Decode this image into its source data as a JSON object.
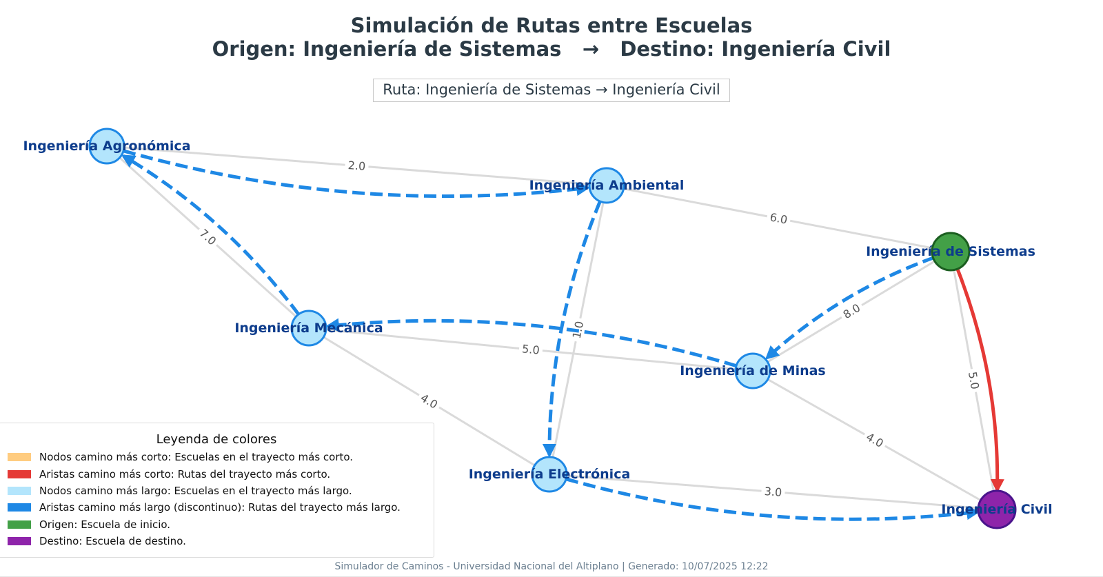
{
  "header": {
    "title_line1": "Simulación de Rutas entre Escuelas",
    "title_line2": "Origen: Ingeniería de Sistemas   →   Destino: Ingeniería Civil",
    "route_box": "Ruta: Ingeniería de Sistemas → Ingeniería Civil"
  },
  "colors": {
    "shortest_nodes": "#ffcc80",
    "shortest_edges": "#e53935",
    "longest_nodes": "#b3e5fc",
    "longest_edges": "#1e88e5",
    "origin": "#43a047",
    "destination": "#8e24aa",
    "base_edge": "#dadada",
    "node_label": "#0d3c8c"
  },
  "nodes": [
    {
      "id": "agronomica",
      "label": "Ingeniería Agronómica",
      "role": "longest"
    },
    {
      "id": "ambiental",
      "label": "Ingeniería Ambiental",
      "role": "longest"
    },
    {
      "id": "sistemas",
      "label": "Ingeniería de Sistemas",
      "role": "origin"
    },
    {
      "id": "mecanica",
      "label": "Ingeniería Mecánica",
      "role": "longest"
    },
    {
      "id": "minas",
      "label": "Ingeniería de Minas",
      "role": "longest"
    },
    {
      "id": "electronica",
      "label": "Ingeniería Electrónica",
      "role": "longest"
    },
    {
      "id": "civil",
      "label": "Ingeniería Civil",
      "role": "destination"
    }
  ],
  "edges": [
    {
      "from": "agronomica",
      "to": "ambiental",
      "weight": "2.0"
    },
    {
      "from": "agronomica",
      "to": "mecanica",
      "weight": "7.0"
    },
    {
      "from": "ambiental",
      "to": "sistemas",
      "weight": "6.0"
    },
    {
      "from": "ambiental",
      "to": "electronica",
      "weight": "1.0"
    },
    {
      "from": "mecanica",
      "to": "minas",
      "weight": "5.0"
    },
    {
      "from": "mecanica",
      "to": "electronica",
      "weight": "4.0"
    },
    {
      "from": "sistemas",
      "to": "minas",
      "weight": "8.0"
    },
    {
      "from": "sistemas",
      "to": "civil",
      "weight": "5.0"
    },
    {
      "from": "minas",
      "to": "civil",
      "weight": "4.0"
    },
    {
      "from": "electronica",
      "to": "civil",
      "weight": "3.0"
    }
  ],
  "shortest_path": [
    "sistemas",
    "civil"
  ],
  "longest_path": [
    "sistemas",
    "minas",
    "mecanica",
    "agronomica",
    "ambiental",
    "electronica",
    "civil"
  ],
  "legend": {
    "title": "Leyenda de colores",
    "items": [
      {
        "color": "#ffcc80",
        "label": "Nodos camino más corto: Escuelas en el trayecto más corto."
      },
      {
        "color": "#e53935",
        "label": "Aristas camino más corto: Rutas del trayecto más corto."
      },
      {
        "color": "#b3e5fc",
        "label": "Nodos camino más largo: Escuelas en el trayecto más largo."
      },
      {
        "color": "#1e88e5",
        "label": "Aristas camino más largo (discontinuo): Rutas del trayecto más largo."
      },
      {
        "color": "#43a047",
        "label": "Origen: Escuela de inicio."
      },
      {
        "color": "#8e24aa",
        "label": "Destino: Escuela de destino."
      }
    ]
  },
  "footer": "Simulador de Caminos - Universidad Nacional del Altiplano | Generado: 10/07/2025 12:22"
}
